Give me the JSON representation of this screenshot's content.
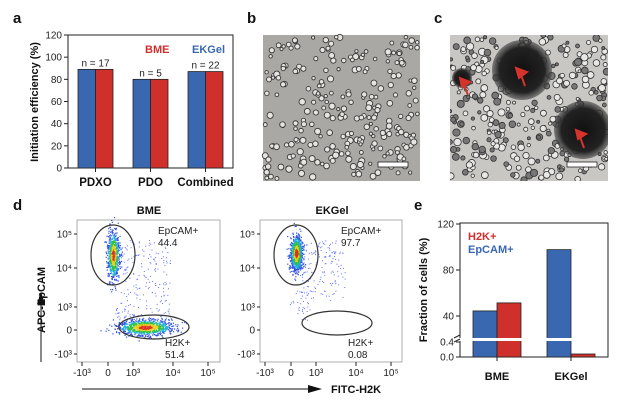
{
  "colors": {
    "bme": "#d0302c",
    "ekgel": "#3a68b0"
  },
  "panel_labels": [
    "a",
    "b",
    "c",
    "d",
    "e"
  ],
  "chart_data": [
    {
      "type": "bar",
      "panel": "a",
      "ylabel": "Initiation efficiency (%)",
      "ylim": [
        0,
        120
      ],
      "yticks": [
        "0",
        "20",
        "40",
        "60",
        "80",
        "100",
        "120"
      ],
      "categories": [
        "PDXO",
        "PDO",
        "Combined"
      ],
      "annotations": [
        "n = 17",
        "n = 5",
        "n = 22"
      ],
      "legend": [
        "BME",
        "EKGel"
      ],
      "legend_placement": "top-right",
      "series": [
        {
          "name": "EKGel",
          "values": [
            89,
            80,
            87
          ]
        },
        {
          "name": "BME",
          "values": [
            89,
            80,
            87
          ]
        }
      ]
    },
    {
      "type": "scatter",
      "panel": "d",
      "xlabel": "FITC-H2K",
      "ylabel": "APC-EpCAM",
      "xticks": [
        "-10³",
        "0",
        "10³",
        "10⁴",
        "10⁵"
      ],
      "yticks": [
        "10⁵",
        "10⁴",
        "10³",
        "0",
        "-10³"
      ],
      "plots": [
        {
          "title": "BME",
          "gates": [
            {
              "name": "EpCAM+",
              "value": "44.4"
            },
            {
              "name": "H2K+",
              "value": "51.4"
            }
          ]
        },
        {
          "title": "EKGel",
          "gates": [
            {
              "name": "EpCAM+",
              "value": "97.7"
            },
            {
              "name": "H2K+",
              "value": "0.08"
            }
          ]
        }
      ]
    },
    {
      "type": "bar",
      "panel": "e",
      "ylabel": "Fraction of cells (%)",
      "yticks": [
        "0.0",
        "0.4",
        "40",
        "80",
        "120"
      ],
      "axis_break": [
        0.4,
        40
      ],
      "categories": [
        "BME",
        "EKGel"
      ],
      "legend": [
        "H2K+",
        "EpCAM+"
      ],
      "legend_placement": "top-left",
      "series": [
        {
          "name": "EpCAM+",
          "values": [
            44.4,
            97.7
          ]
        },
        {
          "name": "H2K+",
          "values": [
            51.4,
            0.08
          ]
        }
      ]
    }
  ]
}
